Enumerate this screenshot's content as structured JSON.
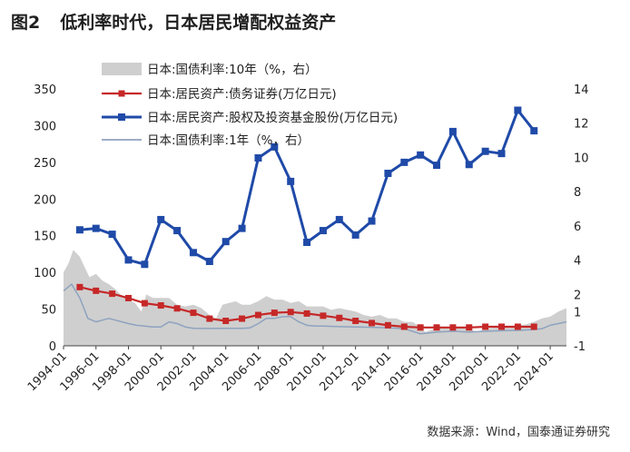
{
  "title": {
    "figure": "图2",
    "text": "低利率时代，日本居民增配权益资产"
  },
  "source": "数据来源：Wind，国泰通证券研究",
  "colors": {
    "red": "#c62828",
    "blue": "#1f4aa8",
    "light_blue": "#8ea3bf",
    "gray_area": "#cfcfcf"
  },
  "chart_data": {
    "type": "line",
    "y_left": {
      "ticks": [
        0,
        50,
        100,
        150,
        200,
        250,
        300,
        350
      ],
      "range": [
        0,
        350
      ]
    },
    "y_right": {
      "ticks": [
        -1,
        1,
        2,
        4,
        6,
        8,
        10,
        12,
        14
      ],
      "range": [
        -1,
        14
      ]
    },
    "x_axis": {
      "ticks": [
        "1994-01",
        "1996-01",
        "1998-01",
        "2000-01",
        "2002-01",
        "2004-01",
        "2006-01",
        "2008-01",
        "2010-01",
        "2012-01",
        "2014-01",
        "2016-01",
        "2018-01",
        "2020-01",
        "2022-01",
        "2024-01"
      ],
      "range": [
        1994.0,
        2025.0
      ]
    },
    "series": [
      {
        "name": "日本:国债利率:10年（%，右）",
        "type": "area",
        "axis": "right",
        "x": [
          1994.0,
          1994.3,
          1994.6,
          1995.0,
          1995.3,
          1995.6,
          1996.0,
          1996.4,
          1996.8,
          1997.2,
          1997.6,
          1998.0,
          1998.4,
          1998.8,
          1999.1,
          1999.5,
          2000.0,
          2000.5,
          2001.0,
          2001.5,
          2002.0,
          2002.5,
          2003.0,
          2003.4,
          2003.8,
          2004.2,
          2004.6,
          2005.0,
          2005.5,
          2006.0,
          2006.5,
          2007.0,
          2007.5,
          2008.0,
          2008.5,
          2009.0,
          2009.5,
          2010.0,
          2010.5,
          2011.0,
          2011.5,
          2012.0,
          2012.5,
          2013.0,
          2013.5,
          2014.0,
          2014.5,
          2015.0,
          2015.5,
          2016.0,
          2016.3,
          2016.6,
          2017.0,
          2017.5,
          2018.0,
          2018.5,
          2019.0,
          2019.5,
          2020.0,
          2020.5,
          2021.0,
          2021.5,
          2022.0,
          2022.5,
          2023.0,
          2023.5,
          2024.0,
          2024.5,
          2025.0
        ],
        "values": [
          3.3,
          3.8,
          4.6,
          4.2,
          3.6,
          3.0,
          3.2,
          2.8,
          2.6,
          2.3,
          1.9,
          1.7,
          1.5,
          1.0,
          2.0,
          1.8,
          1.8,
          1.8,
          1.4,
          1.3,
          1.4,
          1.2,
          0.8,
          0.6,
          1.4,
          1.5,
          1.6,
          1.4,
          1.4,
          1.6,
          1.9,
          1.7,
          1.7,
          1.5,
          1.6,
          1.3,
          1.3,
          1.3,
          1.1,
          1.2,
          1.1,
          1.0,
          0.8,
          0.7,
          0.8,
          0.6,
          0.6,
          0.4,
          0.4,
          0.1,
          -0.2,
          -0.1,
          0.05,
          0.05,
          0.05,
          0.05,
          0.0,
          -0.2,
          0.0,
          0.05,
          0.08,
          0.05,
          0.2,
          0.25,
          0.4,
          0.6,
          0.7,
          1.0,
          1.2
        ]
      },
      {
        "name": "日本:居民资产:债务证券(万亿日元)",
        "type": "line",
        "axis": "left",
        "x": [
          1995,
          1996,
          1997,
          1998,
          1999,
          2000,
          2001,
          2002,
          2003,
          2004,
          2005,
          2006,
          2007,
          2008,
          2009,
          2010,
          2011,
          2012,
          2013,
          2014,
          2015,
          2016,
          2017,
          2018,
          2019,
          2020,
          2021,
          2022,
          2023
        ],
        "values": [
          80,
          75,
          71,
          65,
          58,
          55,
          51,
          45,
          37,
          34,
          37,
          42,
          45,
          46,
          44,
          41,
          38,
          34,
          31,
          28,
          26,
          25,
          25,
          25,
          25,
          26,
          26,
          26,
          26
        ]
      },
      {
        "name": "日本:居民资产:股权及投资基金股份(万亿日元)",
        "type": "line",
        "axis": "left",
        "x": [
          1995,
          1996,
          1997,
          1998,
          1999,
          2000,
          2001,
          2002,
          2003,
          2004,
          2005,
          2006,
          2007,
          2008,
          2009,
          2010,
          2011,
          2012,
          2013,
          2014,
          2015,
          2016,
          2017,
          2018,
          2019,
          2020,
          2021,
          2022,
          2023
        ],
        "values": [
          158,
          160,
          152,
          117,
          111,
          172,
          157,
          127,
          115,
          142,
          160,
          256,
          271,
          224,
          141,
          157,
          172,
          151,
          170,
          235,
          250,
          260,
          246,
          292,
          247,
          265,
          262,
          321,
          293
        ]
      },
      {
        "name": "日本:国债利率:1年（%，右）",
        "type": "line",
        "axis": "right",
        "x": [
          1994.0,
          1994.5,
          1995.0,
          1995.5,
          1996.0,
          1996.4,
          1996.8,
          1997.2,
          1997.6,
          1998.0,
          1998.5,
          1999.0,
          1999.5,
          2000.0,
          2000.5,
          2001.0,
          2001.5,
          2002.0,
          2003.0,
          2004.0,
          2005.0,
          2005.5,
          2006.0,
          2006.5,
          2007.0,
          2007.5,
          2008.0,
          2008.5,
          2009.0,
          2009.5,
          2010.0,
          2011.0,
          2012.0,
          2013.0,
          2014.0,
          2015.0,
          2016.0,
          2016.5,
          2017.0,
          2018.0,
          2019.0,
          2020.0,
          2021.0,
          2022.0,
          2023.0,
          2023.5,
          2024.0,
          2024.5,
          2025.0
        ],
        "values": [
          2.2,
          2.6,
          1.8,
          0.6,
          0.4,
          0.5,
          0.6,
          0.5,
          0.4,
          0.3,
          0.2,
          0.15,
          0.1,
          0.1,
          0.4,
          0.3,
          0.1,
          0.02,
          0.01,
          0.02,
          0.02,
          0.05,
          0.3,
          0.6,
          0.6,
          0.7,
          0.7,
          0.4,
          0.2,
          0.15,
          0.15,
          0.12,
          0.1,
          0.08,
          0.05,
          0.0,
          -0.3,
          -0.25,
          -0.2,
          -0.15,
          -0.2,
          -0.15,
          -0.12,
          -0.1,
          -0.05,
          0.0,
          0.2,
          0.3,
          0.4
        ]
      }
    ]
  }
}
